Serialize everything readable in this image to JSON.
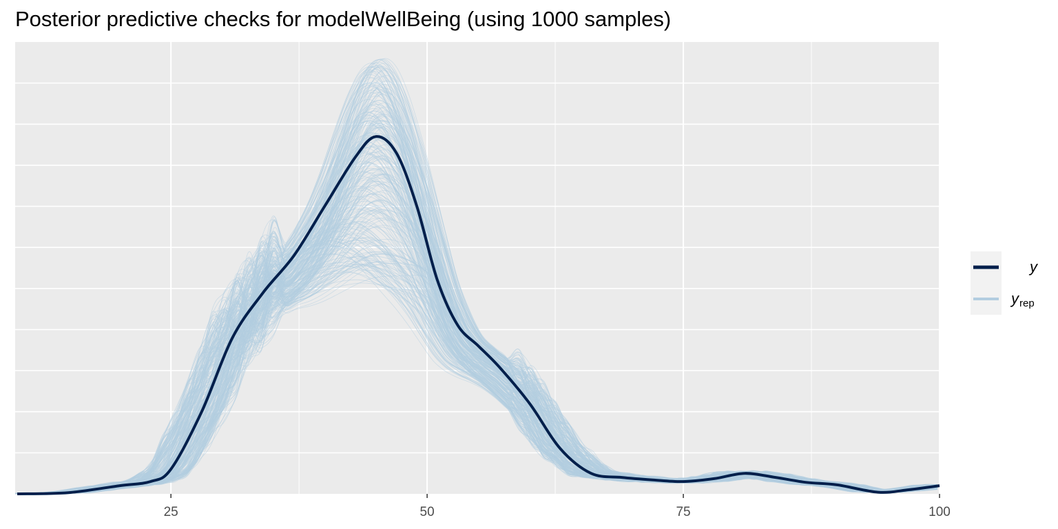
{
  "chart_data": {
    "type": "line",
    "title": "Posterior predictive checks for modelWellBeing (using 1000 samples)",
    "xlabel": "",
    "ylabel": "",
    "xlim": [
      9.8,
      100
    ],
    "ylim": [
      0,
      1.1
    ],
    "x_ticks": [
      25,
      50,
      75,
      100
    ],
    "x_tick_labels": [
      "25",
      "50",
      "75",
      "100"
    ],
    "grid": true,
    "legend_position": "right",
    "legend": [
      {
        "key": "y",
        "label": "y",
        "color": "#011f4b"
      },
      {
        "key": "yrep",
        "label": "y",
        "subscript": "rep",
        "color": "#b3cde0"
      }
    ],
    "colors": {
      "panel_background": "#ebebeb",
      "grid": "#ffffff",
      "y": "#011f4b",
      "yrep": "#b3cde0"
    },
    "series": [
      {
        "name": "y",
        "x": [
          10,
          15,
          20,
          23,
          25,
          28,
          31,
          34,
          37,
          40,
          43,
          45,
          47,
          49,
          51,
          53,
          55,
          57,
          60,
          63,
          66,
          69,
          72,
          75,
          78,
          81,
          84,
          87,
          90,
          94,
          97,
          100
        ],
        "values": [
          0.0,
          0.003,
          0.02,
          0.03,
          0.06,
          0.2,
          0.38,
          0.49,
          0.58,
          0.7,
          0.82,
          0.87,
          0.83,
          0.7,
          0.52,
          0.41,
          0.36,
          0.31,
          0.22,
          0.11,
          0.05,
          0.04,
          0.034,
          0.03,
          0.037,
          0.05,
          0.04,
          0.028,
          0.022,
          0.004,
          0.01,
          0.02
        ]
      }
    ],
    "replicates": {
      "name": "yrep",
      "count": 1000
    }
  }
}
